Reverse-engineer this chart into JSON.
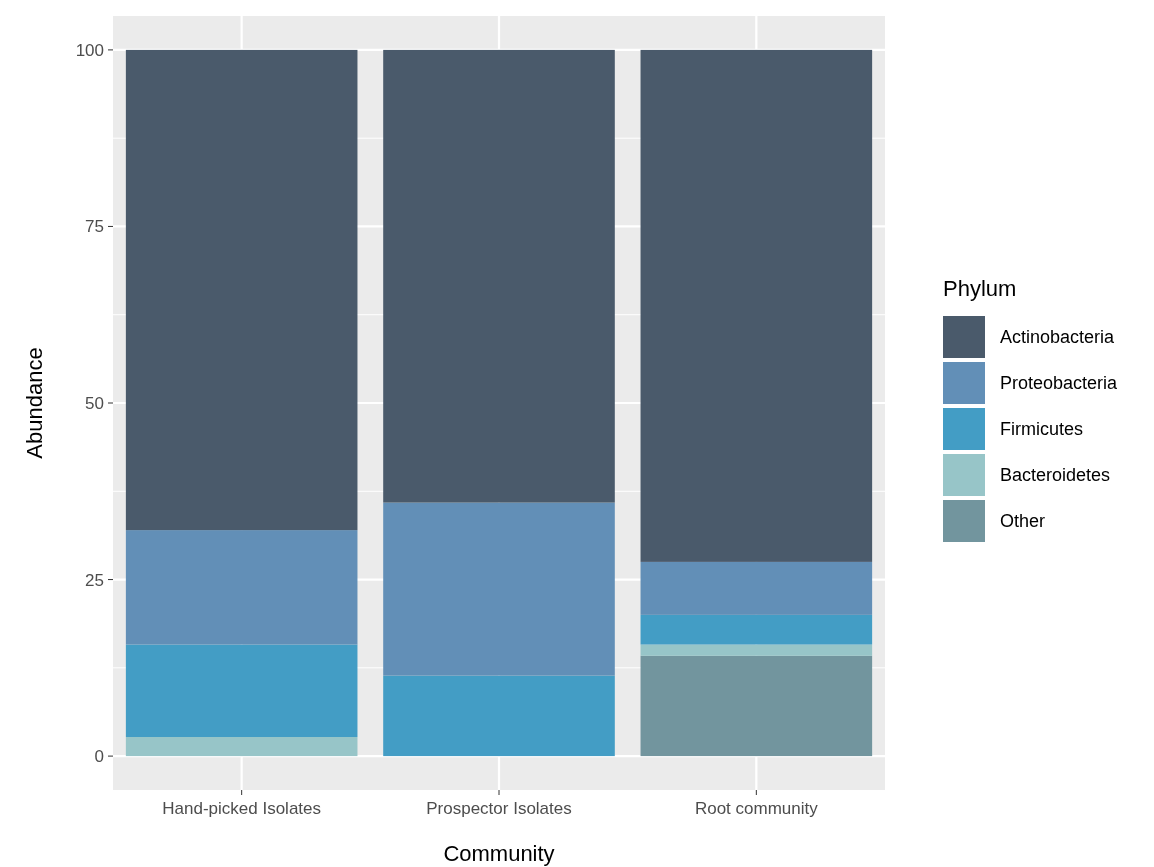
{
  "chart_data": {
    "type": "bar",
    "stacked": true,
    "xlabel": "Community",
    "ylabel": "Abundance",
    "legend_title": "Phylum",
    "legend": "right",
    "grid": true,
    "categories": [
      "Hand-picked Isolates",
      "Prospector Isolates",
      "Root community"
    ],
    "ylim": [
      -4.8,
      104.8
    ],
    "yticks": [
      0,
      25,
      50,
      75,
      100
    ],
    "series": [
      {
        "name": "Other",
        "color": "#72959e",
        "values": [
          0,
          0,
          14.2
        ]
      },
      {
        "name": "Bacteroidetes",
        "color": "#97c5c8",
        "values": [
          2.7,
          0,
          1.6
        ]
      },
      {
        "name": "Firmicutes",
        "color": "#439dc5",
        "values": [
          13.1,
          11.4,
          4.2
        ]
      },
      {
        "name": "Proteobacteria",
        "color": "#628fb7",
        "values": [
          16.2,
          24.5,
          7.5
        ]
      },
      {
        "name": "Actinobacteria",
        "color": "#4a5a6b",
        "values": [
          68,
          64.1,
          72.5
        ]
      }
    ]
  }
}
